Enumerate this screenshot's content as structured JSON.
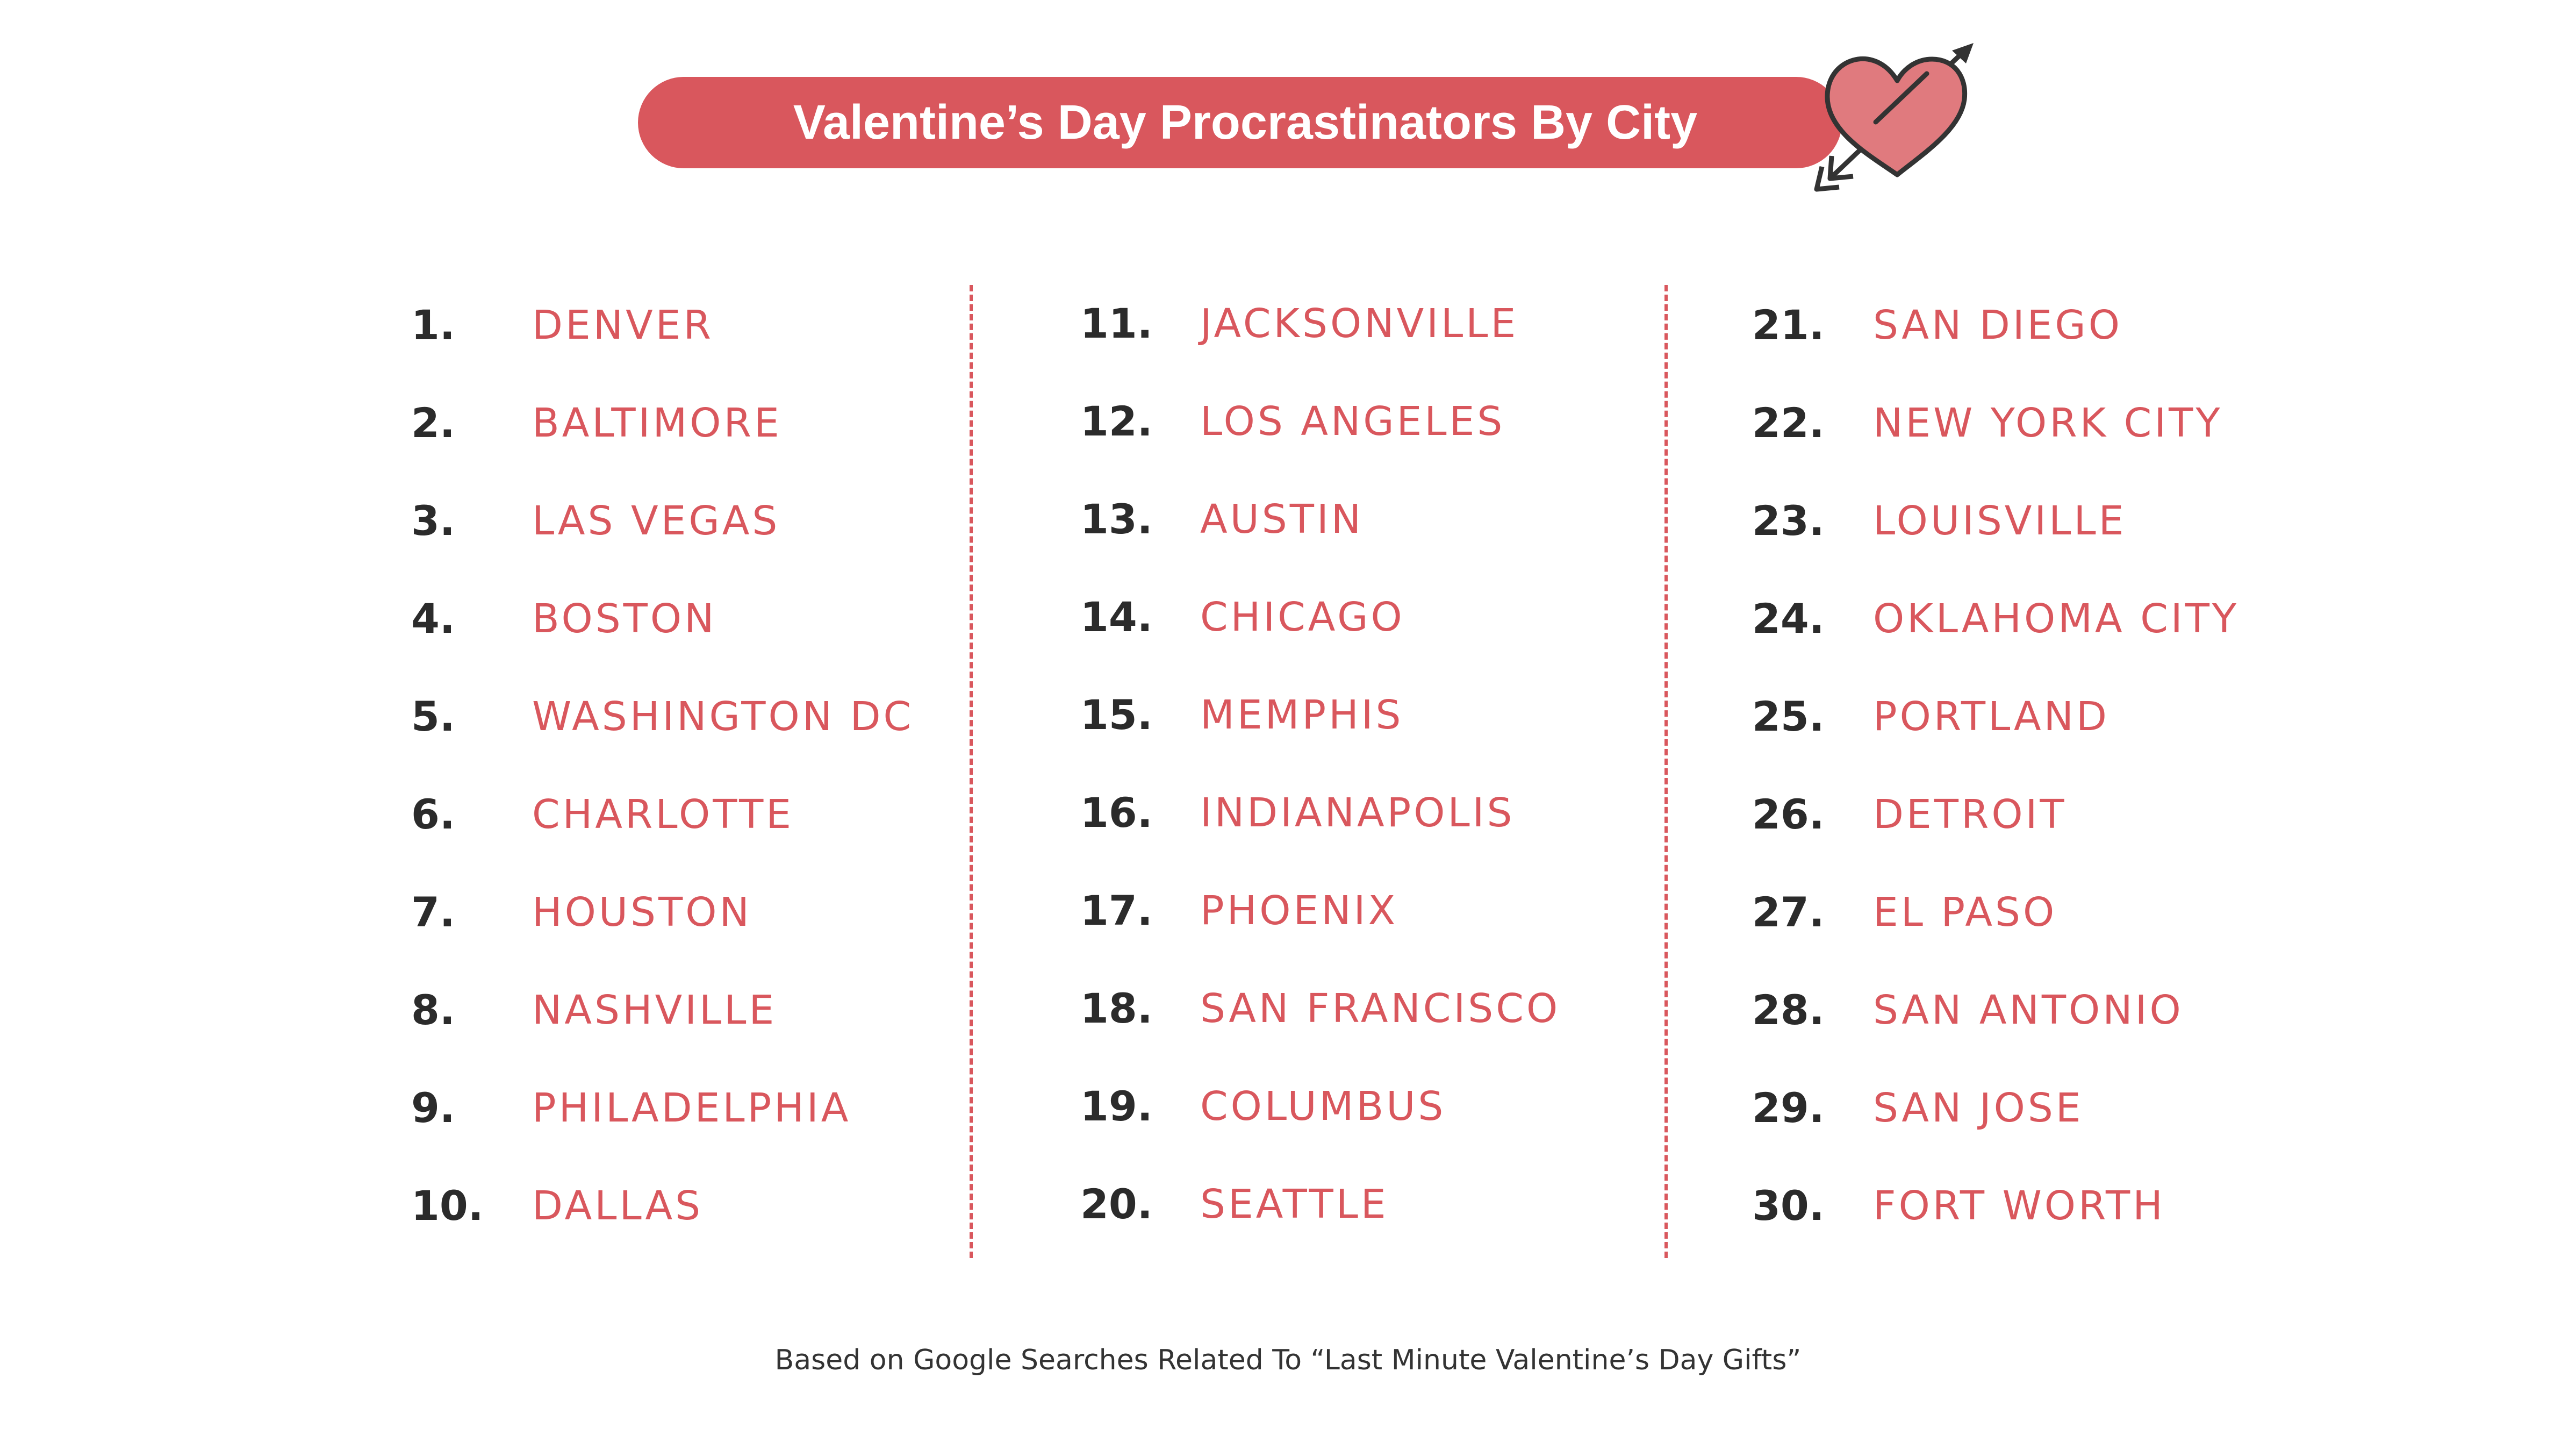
{
  "title": "Valentine’s Day Procrastinators By City",
  "colors": {
    "accent": "#d9575d",
    "heart_fill": "#e07a7e",
    "rank_text": "#2b2b2b",
    "background": "#ffffff"
  },
  "columns": [
    {
      "items": [
        {
          "rank": "1.",
          "city": "DENVER"
        },
        {
          "rank": "2.",
          "city": "BALTIMORE"
        },
        {
          "rank": "3.",
          "city": "LAS VEGAS"
        },
        {
          "rank": "4.",
          "city": "BOSTON"
        },
        {
          "rank": "5.",
          "city": "WASHINGTON DC"
        },
        {
          "rank": "6.",
          "city": "CHARLOTTE"
        },
        {
          "rank": "7.",
          "city": "HOUSTON"
        },
        {
          "rank": "8.",
          "city": "NASHVILLE"
        },
        {
          "rank": "9.",
          "city": "PHILADELPHIA"
        },
        {
          "rank": "10.",
          "city": "DALLAS"
        }
      ]
    },
    {
      "items": [
        {
          "rank": "11.",
          "city": "JACKSONVILLE"
        },
        {
          "rank": "12.",
          "city": "LOS ANGELES"
        },
        {
          "rank": "13.",
          "city": "AUSTIN"
        },
        {
          "rank": "14.",
          "city": "CHICAGO"
        },
        {
          "rank": "15.",
          "city": "MEMPHIS"
        },
        {
          "rank": "16.",
          "city": "INDIANAPOLIS"
        },
        {
          "rank": "17.",
          "city": "PHOENIX"
        },
        {
          "rank": "18.",
          "city": "SAN FRANCISCO"
        },
        {
          "rank": "19.",
          "city": "COLUMBUS"
        },
        {
          "rank": "20.",
          "city": "SEATTLE"
        }
      ]
    },
    {
      "items": [
        {
          "rank": "21.",
          "city": "SAN DIEGO"
        },
        {
          "rank": "22.",
          "city": "NEW YORK CITY"
        },
        {
          "rank": "23.",
          "city": "LOUISVILLE"
        },
        {
          "rank": "24.",
          "city": "OKLAHOMA CITY"
        },
        {
          "rank": "25.",
          "city": "PORTLAND"
        },
        {
          "rank": "26.",
          "city": "DETROIT"
        },
        {
          "rank": "27.",
          "city": "EL PASO"
        },
        {
          "rank": "28.",
          "city": "SAN ANTONIO"
        },
        {
          "rank": "29.",
          "city": "SAN JOSE"
        },
        {
          "rank": "30.",
          "city": "FORT WORTH"
        }
      ]
    }
  ],
  "footnote": "Based on Google Searches Related To “Last Minute Valentine’s Day Gifts”"
}
